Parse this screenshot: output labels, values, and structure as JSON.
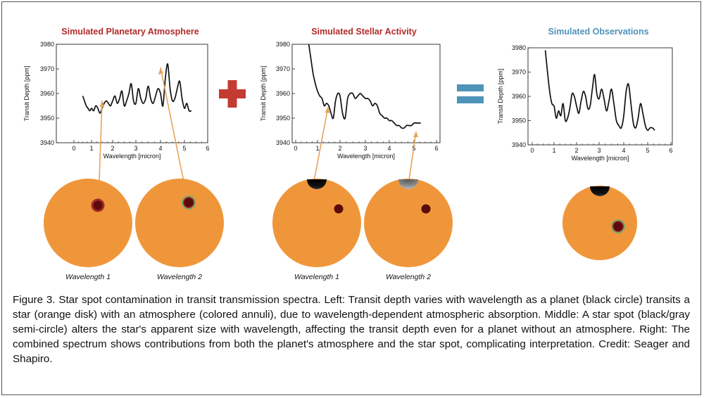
{
  "panels": [
    {
      "title": "Simulated Planetary Atmosphere",
      "title_color": "#b22a2a"
    },
    {
      "title": "Simulated Stellar Activity",
      "title_color": "#b22a2a"
    },
    {
      "title": "Simulated Observations",
      "title_color": "#4f93b8"
    }
  ],
  "wavelength_labels": [
    "Wavelength 1",
    "Wavelength 2",
    "Wavelength 1",
    "Wavelength 2"
  ],
  "colors": {
    "star": "#f0963a",
    "plus": "#c43b32",
    "equals": "#4f93b8",
    "arrow": "#e6a45a",
    "planet": "#5a0a0a",
    "atmosphere_red": "#a32a2a",
    "atmosphere_green": "#7aa86a",
    "spot": "#000000"
  },
  "caption": "Figure 3. Star spot contamination in transit transmission spectra. Left: Transit depth varies with wavelength as a planet (black circle) transits a star (orange disk) with an atmosphere (colored annuli), due to wavelength-dependent atmospheric absorption. Middle: A star spot (black/gray semi-circle) alters the star's apparent size with wavelength, affecting the transit depth even for a planet without an atmosphere. Right: The combined spectrum shows contributions from both the planet's atmosphere and the star spot, complicating interpretation. Credit: Seager and Shapiro.",
  "chart_data": [
    {
      "type": "line",
      "title": "Simulated Planetary Atmosphere",
      "xlabel": "Wavelength [micron]",
      "ylabel": "Transit Depth [ppm]",
      "xlim": [
        0,
        6
      ],
      "ylim": [
        3940,
        3980
      ],
      "xticks": [
        "0",
        "1",
        "2",
        "3",
        "4",
        "5",
        "6"
      ],
      "yticks": [
        "3940",
        "3950",
        "3960",
        "3970",
        "3980"
      ],
      "x": [
        0.5,
        0.6,
        0.7,
        0.8,
        0.9,
        1.0,
        1.1,
        1.2,
        1.3,
        1.4,
        1.5,
        1.6,
        1.7,
        1.8,
        1.9,
        2.0,
        2.1,
        2.2,
        2.3,
        2.4,
        2.5,
        2.6,
        2.7,
        2.8,
        2.9,
        3.0,
        3.1,
        3.2,
        3.3,
        3.4,
        3.5,
        3.6,
        3.7,
        3.8,
        3.9,
        4.0,
        4.1,
        4.2,
        4.3,
        4.4,
        4.5,
        4.6,
        4.7,
        4.8,
        4.9,
        5.0,
        5.1,
        5.2,
        5.3
      ],
      "y": [
        3959,
        3957,
        3955,
        3954,
        3953,
        3954,
        3953,
        3955,
        3954,
        3952,
        3954,
        3956,
        3957,
        3956,
        3955,
        3957,
        3959,
        3956,
        3958,
        3961,
        3955,
        3957,
        3960,
        3964,
        3957,
        3956,
        3962,
        3958,
        3956,
        3958,
        3963,
        3958,
        3956,
        3959,
        3962,
        3960,
        3955,
        3966,
        3972,
        3962,
        3957,
        3958,
        3962,
        3965,
        3958,
        3954,
        3956,
        3953,
        3953
      ]
    },
    {
      "type": "line",
      "title": "Simulated Stellar Activity",
      "xlabel": "Wavelength [micron]",
      "ylabel": "Transit Depth [ppm]",
      "xlim": [
        0,
        6
      ],
      "ylim": [
        3940,
        3980
      ],
      "xticks": [
        "0",
        "1",
        "2",
        "3",
        "4",
        "5",
        "6"
      ],
      "yticks": [
        "3940",
        "3950",
        "3960",
        "3970",
        "3980"
      ],
      "x": [
        0.6,
        0.7,
        0.8,
        0.9,
        1.0,
        1.1,
        1.2,
        1.3,
        1.4,
        1.5,
        1.6,
        1.7,
        1.8,
        1.9,
        2.0,
        2.1,
        2.2,
        2.3,
        2.4,
        2.5,
        2.6,
        2.7,
        2.8,
        2.9,
        3.0,
        3.1,
        3.2,
        3.3,
        3.4,
        3.5,
        3.6,
        3.7,
        3.8,
        3.9,
        4.0,
        4.1,
        4.2,
        4.3,
        4.4,
        4.5,
        4.6,
        4.7,
        4.8,
        4.9,
        5.0,
        5.1,
        5.2,
        5.3
      ],
      "y": [
        3980,
        3974,
        3968,
        3964,
        3961,
        3959,
        3958,
        3955,
        3956,
        3955,
        3952,
        3950,
        3957,
        3960,
        3959,
        3952,
        3950,
        3958,
        3960,
        3960,
        3958,
        3959,
        3960,
        3959,
        3958,
        3958,
        3957,
        3955,
        3956,
        3955,
        3952,
        3951,
        3950,
        3950,
        3949,
        3949,
        3948,
        3947,
        3947,
        3946,
        3946,
        3947,
        3947,
        3947,
        3948,
        3948,
        3948,
        3948
      ]
    },
    {
      "type": "line",
      "title": "Simulated Observations",
      "xlabel": "Wavelength [micron]",
      "ylabel": "Transit Depth [ppm]",
      "xlim": [
        0,
        6
      ],
      "ylim": [
        3940,
        3980
      ],
      "xticks": [
        "0",
        "1",
        "2",
        "3",
        "4",
        "5",
        "6"
      ],
      "yticks": [
        "3940",
        "3950",
        "3960",
        "3970",
        "3980"
      ],
      "x": [
        0.6,
        0.7,
        0.8,
        0.9,
        1.0,
        1.1,
        1.2,
        1.3,
        1.4,
        1.5,
        1.6,
        1.7,
        1.8,
        1.9,
        2.0,
        2.1,
        2.2,
        2.3,
        2.4,
        2.5,
        2.6,
        2.7,
        2.8,
        2.9,
        3.0,
        3.1,
        3.2,
        3.3,
        3.4,
        3.5,
        3.6,
        3.7,
        3.8,
        3.9,
        4.0,
        4.1,
        4.2,
        4.3,
        4.4,
        4.5,
        4.6,
        4.7,
        4.8,
        4.9,
        5.0,
        5.1,
        5.2,
        5.3
      ],
      "y": [
        3979,
        3970,
        3962,
        3957,
        3956,
        3951,
        3954,
        3952,
        3957,
        3950,
        3951,
        3955,
        3961,
        3960,
        3956,
        3953,
        3958,
        3962,
        3960,
        3955,
        3956,
        3963,
        3969,
        3961,
        3959,
        3963,
        3959,
        3954,
        3958,
        3963,
        3957,
        3950,
        3948,
        3947,
        3952,
        3962,
        3965,
        3957,
        3949,
        3947,
        3951,
        3957,
        3953,
        3948,
        3946,
        3947,
        3947,
        3946
      ]
    }
  ]
}
